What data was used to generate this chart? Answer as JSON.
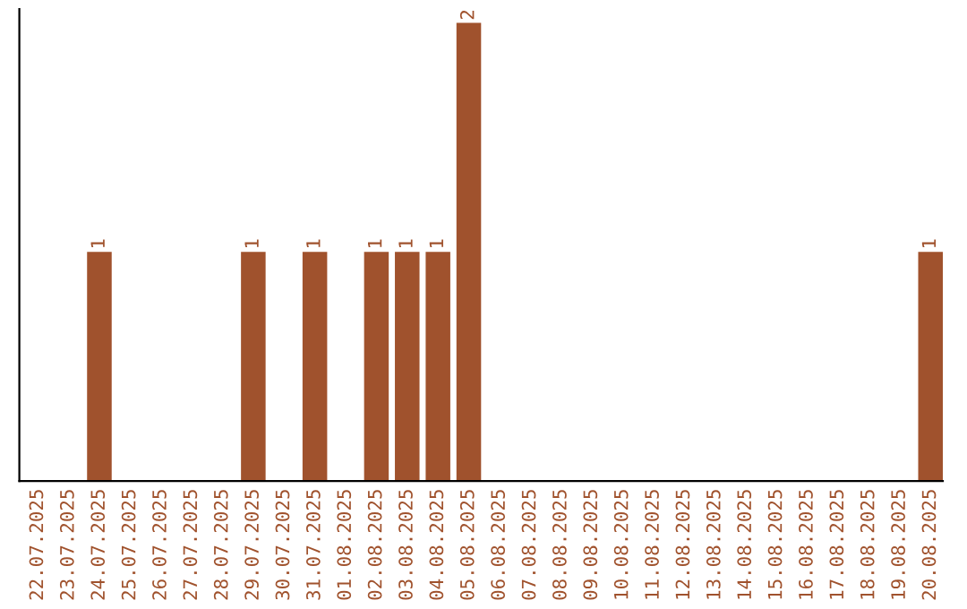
{
  "chart_data": {
    "type": "bar",
    "categories": [
      "22.07.2025",
      "23.07.2025",
      "24.07.2025",
      "25.07.2025",
      "26.07.2025",
      "27.07.2025",
      "28.07.2025",
      "29.07.2025",
      "30.07.2025",
      "31.07.2025",
      "01.08.2025",
      "02.08.2025",
      "03.08.2025",
      "04.08.2025",
      "05.08.2025",
      "06.08.2025",
      "07.08.2025",
      "08.08.2025",
      "09.08.2025",
      "10.08.2025",
      "11.08.2025",
      "12.08.2025",
      "13.08.2025",
      "14.08.2025",
      "15.08.2025",
      "16.08.2025",
      "17.08.2025",
      "18.08.2025",
      "19.08.2025",
      "20.08.2025"
    ],
    "values": [
      0,
      0,
      1,
      0,
      0,
      0,
      0,
      1,
      0,
      1,
      0,
      1,
      1,
      1,
      2,
      0,
      0,
      0,
      0,
      0,
      0,
      0,
      0,
      0,
      0,
      0,
      0,
      0,
      0,
      1
    ],
    "value_labels": [
      null,
      null,
      "1",
      null,
      null,
      null,
      null,
      "1",
      null,
      "1",
      null,
      "1",
      "1",
      "1",
      "2",
      null,
      null,
      null,
      null,
      null,
      null,
      null,
      null,
      null,
      null,
      null,
      null,
      null,
      null,
      "1"
    ],
    "color": "#a0522d",
    "tick_labels": "x",
    "grid": false,
    "legend": false
  }
}
